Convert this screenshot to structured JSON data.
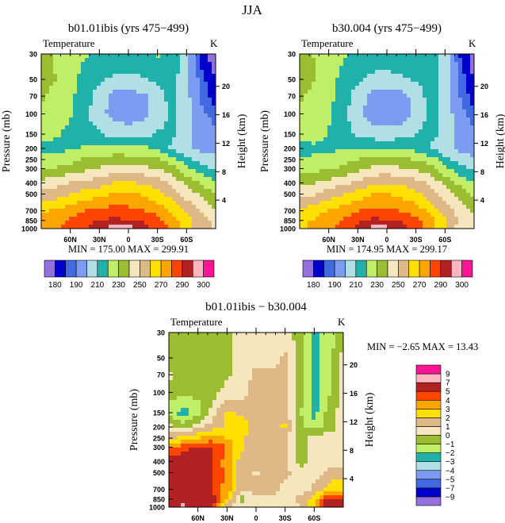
{
  "page": {
    "title": "JJA"
  },
  "chart_data": [
    {
      "type": "heatmap",
      "style": "filled-contour",
      "title": "b01.01ibis (yrs 475−499)",
      "left_label": "Temperature",
      "units": "K",
      "ylabel": "Pressure (mb)",
      "ylabel_right": "Height (km)",
      "x_ticks": [
        "60N",
        "30N",
        "0",
        "30S",
        "60S"
      ],
      "x_tick_values": [
        60,
        30,
        0,
        -30,
        -60
      ],
      "y_ticks": [
        30,
        50,
        70,
        100,
        150,
        200,
        250,
        300,
        400,
        500,
        700,
        850,
        1000
      ],
      "y_right_ticks": [
        4,
        8,
        12,
        16,
        20
      ],
      "xlim": [
        90,
        -90
      ],
      "ylim": [
        1000,
        30
      ],
      "ylog": true,
      "stats": "MIN = 175.00   MAX = 299.91",
      "colorbar": {
        "orientation": "horizontal",
        "labels": [
          "180",
          "190",
          "210",
          "230",
          "250",
          "270",
          "290",
          "300"
        ]
      },
      "levels": [
        180,
        185,
        190,
        200,
        210,
        220,
        230,
        240,
        250,
        260,
        270,
        280,
        290,
        295,
        300
      ],
      "colors": [
        "#9370db",
        "#0000cd",
        "#4169e1",
        "#7b9cf0",
        "#b0e0e6",
        "#20b2aa",
        "#c0ee66",
        "#9abd32",
        "#f5e6be",
        "#deb887",
        "#ffe000",
        "#ffa500",
        "#ff4500",
        "#b22222",
        "#ffb6c1",
        "#ff1493"
      ],
      "lat": [
        90,
        75,
        60,
        45,
        30,
        15,
        0,
        -15,
        -30,
        -45,
        -60,
        -75,
        -90
      ],
      "pressure": [
        30,
        50,
        70,
        100,
        150,
        200,
        250,
        300,
        400,
        500,
        700,
        850,
        1000
      ],
      "values": [
        [
          236,
          229,
          226,
          221,
          218,
          217,
          217,
          218,
          221,
          218,
          202,
          183,
          176
        ],
        [
          235,
          230,
          224,
          216,
          212,
          208,
          207,
          209,
          212,
          215,
          202,
          187,
          180
        ],
        [
          232,
          226,
          222,
          215,
          205,
          197,
          196,
          198,
          205,
          214,
          203,
          189,
          182
        ],
        [
          228,
          225,
          221,
          213,
          203,
          196,
          195,
          197,
          203,
          213,
          204,
          192,
          187
        ],
        [
          222,
          221,
          218,
          214,
          211,
          206,
          205,
          206,
          211,
          212,
          205,
          195,
          192
        ],
        [
          217,
          218,
          218,
          221,
          222,
          223,
          222,
          222,
          219,
          208,
          202,
          197,
          195
        ],
        [
          222,
          224,
          227,
          231,
          233,
          235,
          235,
          233,
          231,
          225,
          214,
          206,
          203
        ],
        [
          228,
          231,
          234,
          237,
          241,
          244,
          245,
          243,
          240,
          233,
          223,
          215,
          207
        ],
        [
          244,
          246,
          250,
          253,
          256,
          260,
          261,
          259,
          255,
          248,
          237,
          228,
          222
        ],
        [
          252,
          255,
          260,
          264,
          267,
          271,
          271,
          269,
          264,
          256,
          246,
          238,
          229
        ],
        [
          268,
          272,
          276,
          280,
          283,
          284,
          283,
          281,
          276,
          267,
          258,
          248,
          240
        ],
        [
          275,
          277,
          282,
          286,
          291,
          292,
          291,
          290,
          283,
          275,
          265,
          255,
          248
        ],
        [
          275,
          278,
          283,
          289,
          294,
          297,
          297,
          294,
          288,
          276,
          262,
          252,
          250
        ]
      ]
    },
    {
      "type": "heatmap",
      "style": "filled-contour",
      "title": "b30.004 (yrs 475−499)",
      "left_label": "Temperature",
      "units": "K",
      "ylabel": "Pressure (mb)",
      "ylabel_right": "Height (km)",
      "x_ticks": [
        "60N",
        "30N",
        "0",
        "30S",
        "60S"
      ],
      "x_tick_values": [
        60,
        30,
        0,
        -30,
        -60
      ],
      "y_ticks": [
        30,
        50,
        70,
        100,
        150,
        200,
        250,
        300,
        400,
        500,
        700,
        850,
        1000
      ],
      "y_right_ticks": [
        4,
        8,
        12,
        16,
        20
      ],
      "xlim": [
        90,
        -90
      ],
      "ylim": [
        1000,
        30
      ],
      "ylog": true,
      "stats": "MIN = 174.95   MAX = 299.17",
      "colorbar": {
        "orientation": "horizontal",
        "labels": [
          "180",
          "190",
          "210",
          "230",
          "250",
          "270",
          "290",
          "300"
        ]
      },
      "levels": [
        180,
        185,
        190,
        200,
        210,
        220,
        230,
        240,
        250,
        260,
        270,
        280,
        290,
        295,
        300
      ],
      "colors": [
        "#9370db",
        "#0000cd",
        "#4169e1",
        "#7b9cf0",
        "#b0e0e6",
        "#20b2aa",
        "#c0ee66",
        "#9abd32",
        "#f5e6be",
        "#deb887",
        "#ffe000",
        "#ffa500",
        "#ff4500",
        "#b22222",
        "#ffb6c1",
        "#ff1493"
      ],
      "lat": [
        90,
        75,
        60,
        45,
        30,
        15,
        0,
        -15,
        -30,
        -45,
        -60,
        -75,
        -90
      ],
      "pressure": [
        30,
        50,
        70,
        100,
        150,
        200,
        250,
        300,
        400,
        500,
        700,
        850,
        1000
      ],
      "values": [
        [
          236.6,
          229.6,
          226.6,
          221.5,
          218.3,
          216.5,
          216.5,
          217.5,
          220.5,
          218.5,
          204.5,
          184.5,
          176.5
        ],
        [
          235.5,
          230.6,
          224.6,
          216.5,
          212.4,
          207.5,
          206.5,
          208.5,
          210.8,
          215.5,
          204.5,
          188.5,
          179.5
        ],
        [
          231.7,
          226.6,
          222.6,
          215.5,
          205.3,
          196.5,
          194.7,
          196.7,
          203.8,
          214.6,
          205.6,
          190.3,
          181.5
        ],
        [
          228.5,
          225.8,
          221.7,
          213.5,
          202.5,
          195.4,
          193.6,
          195.7,
          201.7,
          213.6,
          206.6,
          193.2,
          186.5
        ],
        [
          223.5,
          223.5,
          219.5,
          213.5,
          208.7,
          204.2,
          203.5,
          204.6,
          209.8,
          212.8,
          207.5,
          195.5,
          191.5
        ],
        [
          216.5,
          218.5,
          217.3,
          219.5,
          219.8,
          220.5,
          220.5,
          220.5,
          216.7,
          208.8,
          203.5,
          197.5,
          194.5
        ],
        [
          220.5,
          221.5,
          224,
          227.5,
          230,
          232.8,
          233.7,
          231.6,
          229.6,
          225.7,
          213.5,
          205.5,
          202.5
        ],
        [
          224.5,
          226.5,
          228.8,
          232,
          237.2,
          241.8,
          243.5,
          241.5,
          238.7,
          233.5,
          222.4,
          214.5,
          206.5
        ],
        [
          238,
          240,
          244,
          248,
          252.5,
          258.5,
          259.5,
          257.5,
          253.7,
          248.5,
          236.5,
          227.4,
          221.3
        ],
        [
          246,
          249,
          254,
          258.8,
          263.5,
          269.5,
          270.2,
          267.6,
          262.7,
          255.4,
          245.5,
          236.8,
          227.5
        ],
        [
          262,
          266,
          270,
          275,
          279.5,
          282.7,
          281.5,
          279.5,
          275.4,
          266.5,
          256.8,
          245.5,
          237
        ],
        [
          269,
          270.5,
          276,
          280.5,
          288,
          292.5,
          290.5,
          289.4,
          282.4,
          273.8,
          262.5,
          249.5,
          243
        ],
        [
          269,
          270.5,
          277,
          283.5,
          293.2,
          296.5,
          296.4,
          293.5,
          287.5,
          275.3,
          259,
          244.5,
          245
        ]
      ]
    },
    {
      "type": "heatmap",
      "style": "filled-contour",
      "title": "b01.01ibis − b30.004",
      "left_label": "Temperature",
      "units": "K",
      "ylabel": "Pressure (mb)",
      "ylabel_right": "Height (km)",
      "x_ticks": [
        "60N",
        "30N",
        "0",
        "30S",
        "60S"
      ],
      "x_tick_values": [
        60,
        30,
        0,
        -30,
        -60
      ],
      "y_ticks": [
        30,
        50,
        70,
        100,
        150,
        200,
        250,
        300,
        400,
        500,
        700,
        850,
        1000
      ],
      "y_right_ticks": [
        4,
        8,
        12,
        16,
        20
      ],
      "xlim": [
        90,
        -90
      ],
      "ylim": [
        1000,
        30
      ],
      "ylog": true,
      "stats": "MIN =   −2.65   MAX =   13.43",
      "colorbar": {
        "orientation": "vertical",
        "labels": [
          "−9",
          "−7",
          "−5",
          "−4",
          "−3",
          "−2",
          "−1",
          "0",
          "1",
          "2",
          "3",
          "4",
          "5",
          "7",
          "9"
        ]
      },
      "levels": [
        -9,
        -7,
        -5,
        -4,
        -3,
        -2,
        -1,
        0,
        1,
        2,
        3,
        4,
        5,
        7,
        9
      ],
      "colors": [
        "#9370db",
        "#0000cd",
        "#4169e1",
        "#7b9cf0",
        "#b0e0e6",
        "#20b2aa",
        "#c0ee66",
        "#9abd32",
        "#f5e6be",
        "#deb887",
        "#ffe000",
        "#ffa500",
        "#ff4500",
        "#b22222",
        "#ffb6c1",
        "#ff1493"
      ],
      "lat": [
        90,
        75,
        60,
        45,
        30,
        15,
        0,
        -15,
        -30,
        -45,
        -60,
        -75,
        -90
      ],
      "pressure": [
        30,
        50,
        70,
        100,
        150,
        200,
        250,
        300,
        400,
        500,
        700,
        850,
        1000
      ],
      "values": [
        [
          -0.6,
          -0.6,
          -0.6,
          -0.5,
          -0.3,
          0.5,
          0.5,
          0.5,
          0.5,
          -0.5,
          -2.5,
          -1.5,
          -0.5
        ],
        [
          -0.5,
          -0.6,
          -0.6,
          -0.5,
          -0.4,
          0.5,
          0.5,
          0.5,
          1.2,
          -0.5,
          -2.5,
          -1.5,
          0.5
        ],
        [
          0.3,
          -0.6,
          -0.6,
          -0.5,
          -0.3,
          0.5,
          1.3,
          1.3,
          1.2,
          -0.6,
          -2.6,
          -1.3,
          0.5
        ],
        [
          -0.5,
          -0.8,
          -0.7,
          -0.5,
          0.5,
          0.6,
          1.4,
          1.3,
          1.3,
          -0.6,
          -2.6,
          -1.2,
          0.5
        ],
        [
          -1.5,
          -2.5,
          -1.5,
          0.5,
          2.3,
          1.8,
          1.5,
          1.4,
          1.2,
          -0.8,
          -2.5,
          -0.5,
          0.5
        ],
        [
          0.5,
          -0.5,
          0.7,
          1.5,
          2.2,
          2.5,
          1.5,
          1.5,
          2.3,
          -0.8,
          -1.5,
          -0.5,
          0.5
        ],
        [
          1.5,
          2.5,
          3,
          3.5,
          3,
          2.2,
          1.3,
          1.4,
          1.4,
          -0.7,
          0.5,
          0.5,
          0.5
        ],
        [
          3.5,
          4.5,
          5.2,
          5,
          3.8,
          2.2,
          1.5,
          1.5,
          1.3,
          -0.5,
          0.6,
          0.5,
          0.5
        ],
        [
          6,
          6,
          6,
          5,
          3.5,
          1.5,
          1.5,
          1.5,
          1.3,
          -0.5,
          0.5,
          0.6,
          0.7
        ],
        [
          6,
          6,
          6,
          5.2,
          3.5,
          1.5,
          0.8,
          1.4,
          1.3,
          0.6,
          0.5,
          1.2,
          1.5
        ],
        [
          6,
          6,
          6,
          5,
          3.5,
          1.3,
          1.5,
          1.5,
          0.6,
          0.5,
          1.2,
          2.5,
          3
        ],
        [
          6,
          6.5,
          6,
          5.5,
          3,
          -0.5,
          0.5,
          0.6,
          0.6,
          1.2,
          2.5,
          5.5,
          5
        ],
        [
          6,
          7.5,
          6,
          5.5,
          0.8,
          0.5,
          0.6,
          0.5,
          0.5,
          0.7,
          3,
          7.5,
          5
        ]
      ]
    }
  ]
}
